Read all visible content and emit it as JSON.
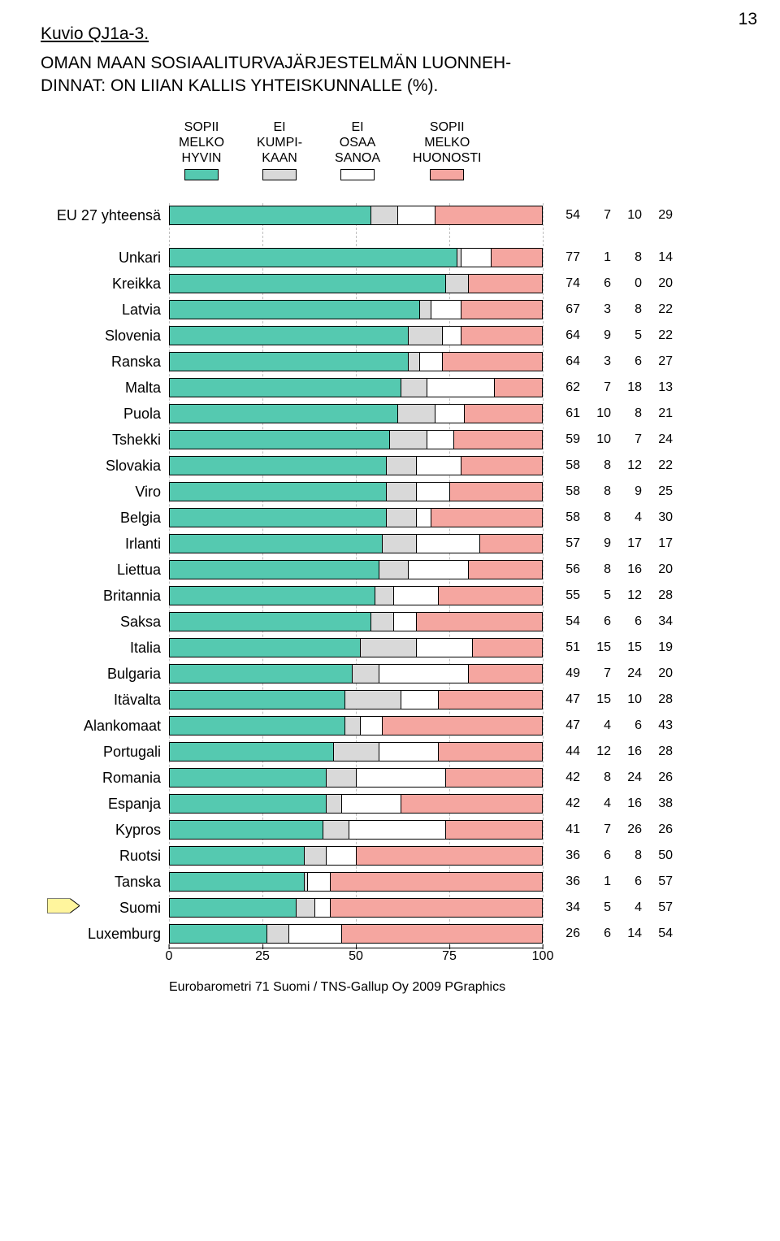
{
  "page_number": "13",
  "kuvio_label": "Kuvio QJ1a-3.",
  "title_line1": "OMAN MAAN SOSIAALITURVAJÄRJESTELMÄN LUONNEH-",
  "title_line2": "DINNAT: ON LIIAN KALLIS YHTEISKUNNALLE (%).",
  "legend": [
    {
      "text": "SOPII\nMELKO\nHYVIN",
      "color": "#55c9b0"
    },
    {
      "text": "EI\nKUMPI-\nKAAN",
      "color": "#d9d9d9"
    },
    {
      "text": "EI\nOSAA\nSANOA",
      "color": "#ffffff"
    },
    {
      "text": "SOPII\nMELKO\nHUONOSTI",
      "color": "#f5a6a0"
    }
  ],
  "series_colors": [
    "#55c9b0",
    "#d9d9d9",
    "#ffffff",
    "#f5a6a0"
  ],
  "header_row": {
    "label": "EU 27 yhteensä",
    "values": [
      54,
      7,
      10,
      29
    ]
  },
  "rows": [
    {
      "label": "Unkari",
      "values": [
        77,
        1,
        8,
        14
      ]
    },
    {
      "label": "Kreikka",
      "values": [
        74,
        6,
        0,
        20
      ]
    },
    {
      "label": "Latvia",
      "values": [
        67,
        3,
        8,
        22
      ]
    },
    {
      "label": "Slovenia",
      "values": [
        64,
        9,
        5,
        22
      ]
    },
    {
      "label": "Ranska",
      "values": [
        64,
        3,
        6,
        27
      ]
    },
    {
      "label": "Malta",
      "values": [
        62,
        7,
        18,
        13
      ]
    },
    {
      "label": "Puola",
      "values": [
        61,
        10,
        8,
        21
      ]
    },
    {
      "label": "Tshekki",
      "values": [
        59,
        10,
        7,
        24
      ]
    },
    {
      "label": "Slovakia",
      "values": [
        58,
        8,
        12,
        22
      ]
    },
    {
      "label": "Viro",
      "values": [
        58,
        8,
        9,
        25
      ]
    },
    {
      "label": "Belgia",
      "values": [
        58,
        8,
        4,
        30
      ]
    },
    {
      "label": "Irlanti",
      "values": [
        57,
        9,
        17,
        17
      ]
    },
    {
      "label": "Liettua",
      "values": [
        56,
        8,
        16,
        20
      ]
    },
    {
      "label": "Britannia",
      "values": [
        55,
        5,
        12,
        28
      ]
    },
    {
      "label": "Saksa",
      "values": [
        54,
        6,
        6,
        34
      ]
    },
    {
      "label": "Italia",
      "values": [
        51,
        15,
        15,
        19
      ]
    },
    {
      "label": "Bulgaria",
      "values": [
        49,
        7,
        24,
        20
      ]
    },
    {
      "label": "Itävalta",
      "values": [
        47,
        15,
        10,
        28
      ]
    },
    {
      "label": "Alankomaat",
      "values": [
        47,
        4,
        6,
        43
      ]
    },
    {
      "label": "Portugali",
      "values": [
        44,
        12,
        16,
        28
      ]
    },
    {
      "label": "Romania",
      "values": [
        42,
        8,
        24,
        26
      ]
    },
    {
      "label": "Espanja",
      "values": [
        42,
        4,
        16,
        38
      ]
    },
    {
      "label": "Kypros",
      "values": [
        41,
        7,
        26,
        26
      ]
    },
    {
      "label": "Ruotsi",
      "values": [
        36,
        6,
        8,
        50
      ]
    },
    {
      "label": "Tanska",
      "values": [
        36,
        1,
        6,
        57
      ]
    },
    {
      "label": "Suomi",
      "values": [
        34,
        5,
        4,
        57
      ],
      "pointer": true
    },
    {
      "label": "Luxemburg",
      "values": [
        26,
        6,
        14,
        54
      ]
    }
  ],
  "axis": {
    "min": 0,
    "max": 100,
    "ticks": [
      0,
      25,
      50,
      75,
      100
    ],
    "gridline_color": "#bfbfbf"
  },
  "pointer_fill": "#fff59d",
  "footer_text": "Eurobarometri 71 Suomi / TNS-Gallup Oy 2009  PGraphics"
}
